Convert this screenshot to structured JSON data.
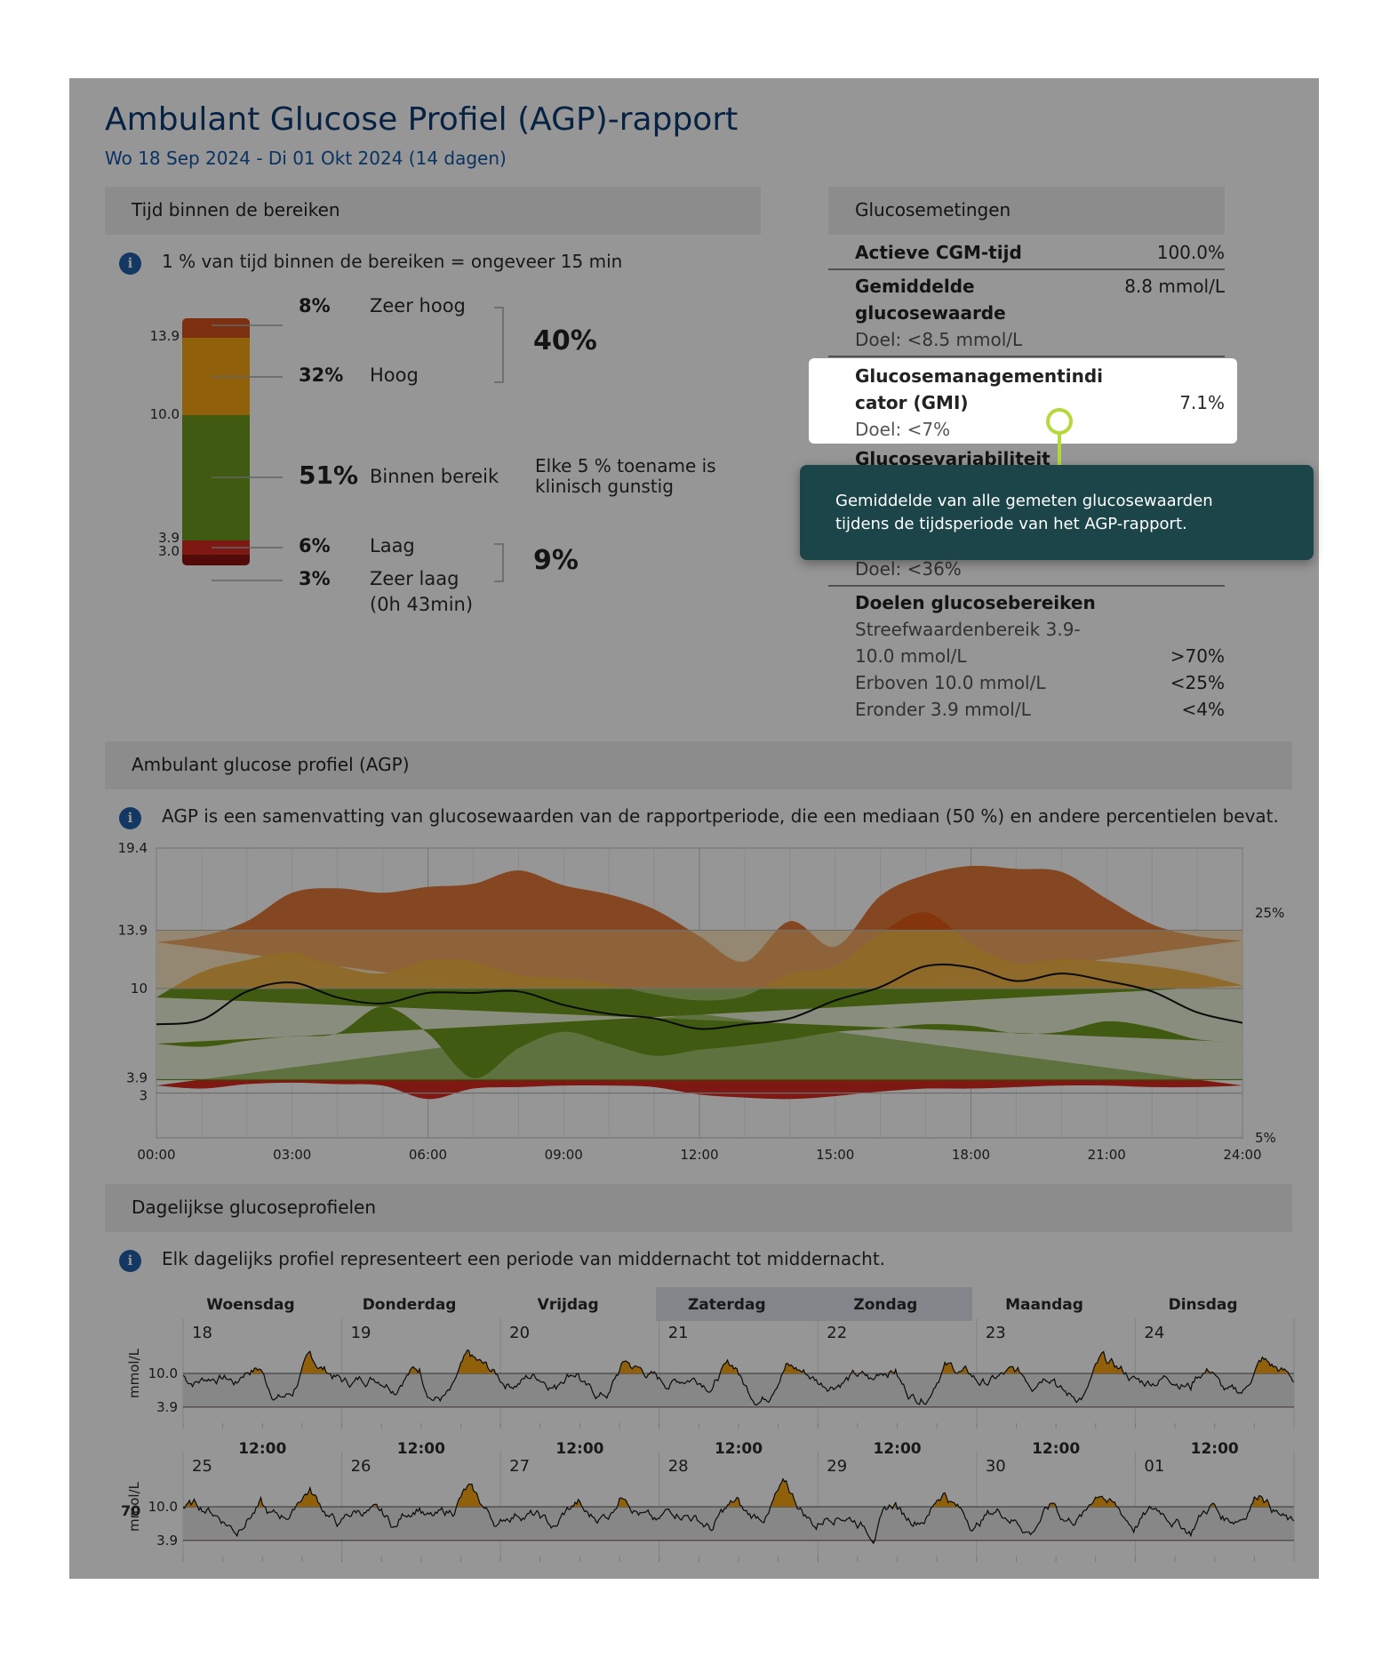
{
  "report": {
    "title": "Ambulant Glucose Profiel (AGP)-rapport",
    "date_range": "Wo 18 Sep 2024 - Di 01 Okt 2024 (14 dagen)"
  },
  "tir": {
    "header": "Tijd binnen de bereiken",
    "info": "1 % van tijd binnen de bereiken = ongeveer 15 min",
    "bar_ticks": [
      "13.9",
      "10.0",
      "3.9",
      "3.0"
    ],
    "rows": [
      {
        "pct": "8%",
        "label": "Zeer hoog",
        "value": 8
      },
      {
        "pct": "32%",
        "label": "Hoog",
        "value": 32
      },
      {
        "pct": "51%",
        "label": "Binnen bereik",
        "value": 51
      },
      {
        "pct": "6%",
        "label": "Laag",
        "value": 6
      },
      {
        "pct": "3%",
        "label": "Zeer laag",
        "value": 3
      }
    ],
    "very_low_duration": "(0h 43min)",
    "high_total": "40%",
    "low_total": "9%",
    "target_note_line1": "Elke 5 % toename is",
    "target_note_line2": "klinisch gunstig",
    "colors": {
      "very_high": "#d4521b",
      "high": "#f5a413",
      "in_range": "#6d9a1e",
      "low": "#d42b1f",
      "very_low": "#8a1512"
    }
  },
  "glucose": {
    "header": "Glucosemetingen",
    "cgm_label": "Actieve CGM-tijd",
    "cgm_value": "100.0%",
    "mean_label_1": "Gemiddelde",
    "mean_label_2": "glucosewaarde",
    "mean_value": "8.8 mmol/L",
    "mean_goal": "Doel: <8.5 mmol/L",
    "gmi_label_1": "Glucosemanagementindi",
    "gmi_label_2": "cator (GMI)",
    "gmi_value": "7.1%",
    "gmi_goal": "Doel: <7%",
    "var_label": "Glucosevariabiliteit",
    "var_goal": "Doel: <36%",
    "targets_label": "Doelen glucosebereiken",
    "target_range_1": "Streefwaardenbereik 3.9-",
    "target_range_2": "10.0 mmol/L",
    "target_range_value": ">70%",
    "above_label": "Erboven 10.0 mmol/L",
    "above_value": "<25%",
    "below_label": "Eronder 3.9 mmol/L",
    "below_value": "<4%"
  },
  "tooltip": {
    "line1": "Gemiddelde van alle gemeten glucosewaarden",
    "line2": "tijdens de tijdsperiode van het AGP-rapport."
  },
  "agp": {
    "header": "Ambulant glucose profiel (AGP)",
    "info": "AGP is een samenvatting van glucosewaarden van de rapportperiode, die een mediaan (50 %) en andere percentielen bevat.",
    "y_ticks": [
      "19.4",
      "13.9",
      "10",
      "3.9",
      "3"
    ],
    "x_ticks": [
      "00:00",
      "03:00",
      "06:00",
      "09:00",
      "12:00",
      "15:00",
      "18:00",
      "21:00",
      "24:00"
    ],
    "right_labels": [
      "25%",
      "5%"
    ]
  },
  "chart_data": {
    "type": "area",
    "x": [
      "00:00",
      "01:00",
      "02:00",
      "03:00",
      "04:00",
      "05:00",
      "06:00",
      "07:00",
      "08:00",
      "09:00",
      "10:00",
      "11:00",
      "12:00",
      "13:00",
      "14:00",
      "15:00",
      "16:00",
      "17:00",
      "18:00",
      "19:00",
      "20:00",
      "21:00",
      "22:00",
      "23:00",
      "24:00"
    ],
    "ylim": [
      0,
      19.4
    ],
    "series": [
      {
        "name": "95%",
        "values": [
          13.1,
          13.5,
          14.5,
          16.4,
          16.7,
          16.4,
          16.8,
          17.0,
          17.9,
          16.9,
          16.3,
          15.3,
          13.5,
          11.8,
          14.5,
          12.8,
          16.2,
          17.6,
          18.2,
          18.0,
          17.8,
          16.0,
          14.3,
          13.5,
          13.2
        ]
      },
      {
        "name": "75%",
        "values": [
          9.4,
          11.1,
          11.9,
          12.4,
          11.5,
          11.0,
          11.9,
          11.8,
          10.9,
          10.7,
          10.3,
          9.6,
          9.2,
          9.5,
          11.0,
          11.5,
          13.7,
          15.1,
          13.0,
          11.7,
          12.0,
          11.8,
          11.5,
          11.0,
          10.2
        ]
      },
      {
        "name": "50%",
        "values": [
          7.6,
          7.9,
          9.8,
          10.4,
          9.4,
          9.0,
          9.7,
          9.7,
          9.8,
          8.9,
          8.3,
          8.0,
          7.3,
          7.6,
          8.0,
          9.2,
          10.1,
          11.5,
          11.4,
          10.5,
          11.0,
          10.5,
          9.8,
          8.4,
          7.7
        ]
      },
      {
        "name": "25%",
        "values": [
          6.4,
          6.6,
          7.4,
          7.8,
          7.1,
          7.0,
          7.5,
          7.6,
          7.3,
          7.1,
          6.6,
          6.2,
          5.9,
          5.5,
          6.3,
          7.1,
          6.0,
          4.0,
          7.0,
          8.8,
          7.0,
          6.8,
          6.5,
          6.1,
          6.3
        ]
      },
      {
        "name": "5%",
        "values": [
          3.5,
          3.4,
          3.4,
          3.5,
          3.5,
          3.4,
          3.3,
          3.3,
          3.1,
          2.8,
          2.6,
          2.7,
          2.9,
          3.4,
          3.5,
          3.5,
          3.4,
          3.3,
          2.6,
          3.5,
          3.6,
          3.7,
          3.6,
          3.3,
          3.5
        ]
      }
    ]
  },
  "daily": {
    "header": "Dagelijkse glucoseprofielen",
    "info": "Elk dagelijks profiel representeert een periode van middernacht tot middernacht.",
    "weekdays": [
      "Woensdag",
      "Donderdag",
      "Vrijdag",
      "Zaterdag",
      "Zondag",
      "Maandag",
      "Dinsdag"
    ],
    "week1_days": [
      "18",
      "19",
      "20",
      "21",
      "22",
      "23",
      "24"
    ],
    "week2_days": [
      "25",
      "26",
      "27",
      "28",
      "29",
      "30",
      "01"
    ],
    "noon_label": "12:00",
    "y_label": "mmol/L",
    "y_ticks": [
      "10.0",
      "3.9"
    ],
    "side_number": "70"
  }
}
